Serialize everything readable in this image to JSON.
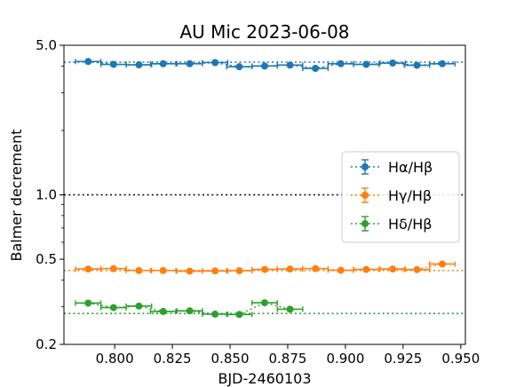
{
  "chart_data": {
    "type": "scatter",
    "title": "AU Mic 2023-06-08",
    "xlabel": "BJD-2460103",
    "ylabel": "Balmer decrement",
    "xlim": [
      0.778,
      0.952
    ],
    "ylim": [
      0.2,
      5.0
    ],
    "yscale": "log",
    "xticks": [
      0.8,
      0.825,
      0.85,
      0.875,
      0.9,
      0.925,
      0.95
    ],
    "xtick_labels": [
      "0.800",
      "0.825",
      "0.850",
      "0.875",
      "0.900",
      "0.925",
      "0.950"
    ],
    "yticks": [
      0.2,
      0.5,
      1.0,
      5.0
    ],
    "ytick_labels": [
      "0.2",
      "0.5",
      "1.0",
      "5.0"
    ],
    "grid": false,
    "legend_position": "center-right",
    "reference_line": {
      "y": 1.0,
      "color": "#000000",
      "style": "dotted"
    },
    "series": [
      {
        "name": "Hα/Hβ",
        "color": "#1f77b4",
        "level": 4.17,
        "x": [
          0.7885,
          0.7995,
          0.8105,
          0.821,
          0.8325,
          0.8435,
          0.854,
          0.865,
          0.876,
          0.887,
          0.898,
          0.909,
          0.9205,
          0.931,
          0.942
        ],
        "y": [
          4.2,
          4.07,
          4.05,
          4.1,
          4.1,
          4.15,
          3.97,
          4.0,
          4.04,
          3.9,
          4.1,
          4.07,
          4.13,
          4.03,
          4.1
        ],
        "xerr": 0.0055,
        "yerr": 0.06
      },
      {
        "name": "Hγ/Hβ",
        "color": "#ff7f0e",
        "level": 0.443,
        "x": [
          0.7885,
          0.7995,
          0.8105,
          0.821,
          0.8325,
          0.8435,
          0.854,
          0.865,
          0.876,
          0.887,
          0.898,
          0.909,
          0.9205,
          0.931,
          0.942
        ],
        "y": [
          0.45,
          0.452,
          0.443,
          0.443,
          0.44,
          0.441,
          0.442,
          0.448,
          0.45,
          0.452,
          0.444,
          0.448,
          0.45,
          0.447,
          0.475
        ],
        "xerr": 0.0055,
        "yerr": 0.006
      },
      {
        "name": "Hδ/Hβ",
        "color": "#2ca02c",
        "level": 0.279,
        "x": [
          0.7885,
          0.7995,
          0.8105,
          0.821,
          0.8325,
          0.8435,
          0.854,
          0.865,
          0.876
        ],
        "y": [
          0.312,
          0.297,
          0.302,
          0.285,
          0.287,
          0.277,
          0.276,
          0.313,
          0.292
        ],
        "xerr": 0.0055,
        "yerr": 0.008
      }
    ]
  }
}
